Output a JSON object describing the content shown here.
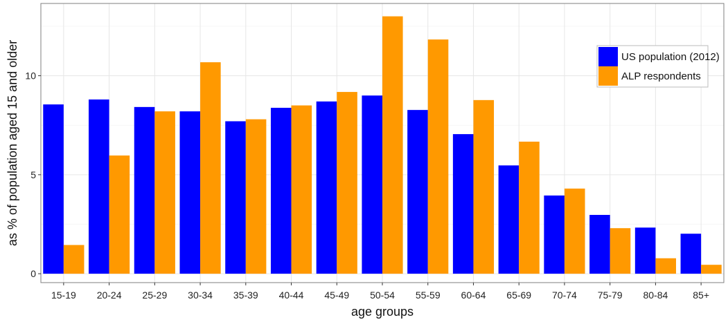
{
  "chart_data": {
    "type": "bar",
    "title": "",
    "xlabel": "age groups",
    "ylabel": "as % of population aged 15 and older",
    "categories": [
      "15-19",
      "20-24",
      "25-29",
      "30-34",
      "35-39",
      "40-44",
      "45-49",
      "50-54",
      "55-59",
      "60-64",
      "65-69",
      "70-74",
      "75-79",
      "80-84",
      "85+"
    ],
    "series": [
      {
        "name": "US population (2012)",
        "color": "#0000ff",
        "values": [
          8.55,
          8.8,
          8.42,
          8.2,
          7.7,
          8.38,
          8.7,
          9.0,
          8.27,
          7.05,
          5.47,
          3.95,
          2.97,
          2.33,
          2.02
        ]
      },
      {
        "name": "ALP respondents",
        "color": "#ff9900",
        "values": [
          1.45,
          5.97,
          8.2,
          10.68,
          7.8,
          8.5,
          9.18,
          13.0,
          11.83,
          8.77,
          6.67,
          4.3,
          2.3,
          0.78,
          0.45
        ]
      }
    ],
    "ylim": [
      -0.45,
      13.65
    ],
    "yticks": [
      0,
      5,
      10
    ],
    "grid": true,
    "legend_position": "top-right"
  }
}
